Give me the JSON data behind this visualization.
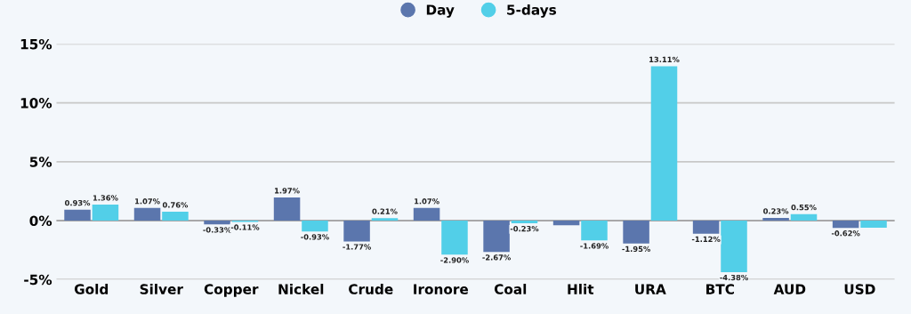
{
  "chart_data": {
    "type": "bar",
    "categories": [
      "Gold",
      "Silver",
      "Copper",
      "Nickel",
      "Crude",
      "Ironore",
      "Coal",
      "Hlit",
      "URA",
      "BTC",
      "AUD",
      "USD"
    ],
    "series": [
      {
        "name": "Day",
        "color": "#5b76ad",
        "values": [
          0.93,
          1.07,
          -0.33,
          1.97,
          -1.77,
          1.07,
          -2.67,
          -0.4,
          -1.95,
          -1.12,
          0.23,
          -0.62
        ],
        "value_labels": [
          "0.93%",
          "1.07%",
          "-0.33%",
          "1.97%",
          "-1.77%",
          "1.07%",
          "-2.67%",
          null,
          "-1.95%",
          "-1.12%",
          "0.23%",
          "-0.62%"
        ]
      },
      {
        "name": "5-days",
        "color": "#52cfe8",
        "values": [
          1.36,
          0.76,
          -0.11,
          -0.93,
          0.21,
          -2.9,
          -0.23,
          -1.69,
          13.11,
          -4.38,
          0.55,
          -0.6
        ],
        "value_labels": [
          "1.36%",
          "0.76%",
          "-0.11%",
          "-0.93%",
          "0.21%",
          "-2.90%",
          "-0.23%",
          "-1.69%",
          "13.11%",
          "-4.38%",
          "0.55%",
          null
        ]
      }
    ],
    "ylim": [
      -5,
      15
    ],
    "yticks": [
      {
        "value": -5,
        "label": "-5%"
      },
      {
        "value": 0,
        "label": "0%"
      },
      {
        "value": 5,
        "label": "5%"
      },
      {
        "value": 10,
        "label": "10%"
      },
      {
        "value": 15,
        "label": "15%"
      }
    ],
    "grid": "y",
    "legend": "top"
  }
}
